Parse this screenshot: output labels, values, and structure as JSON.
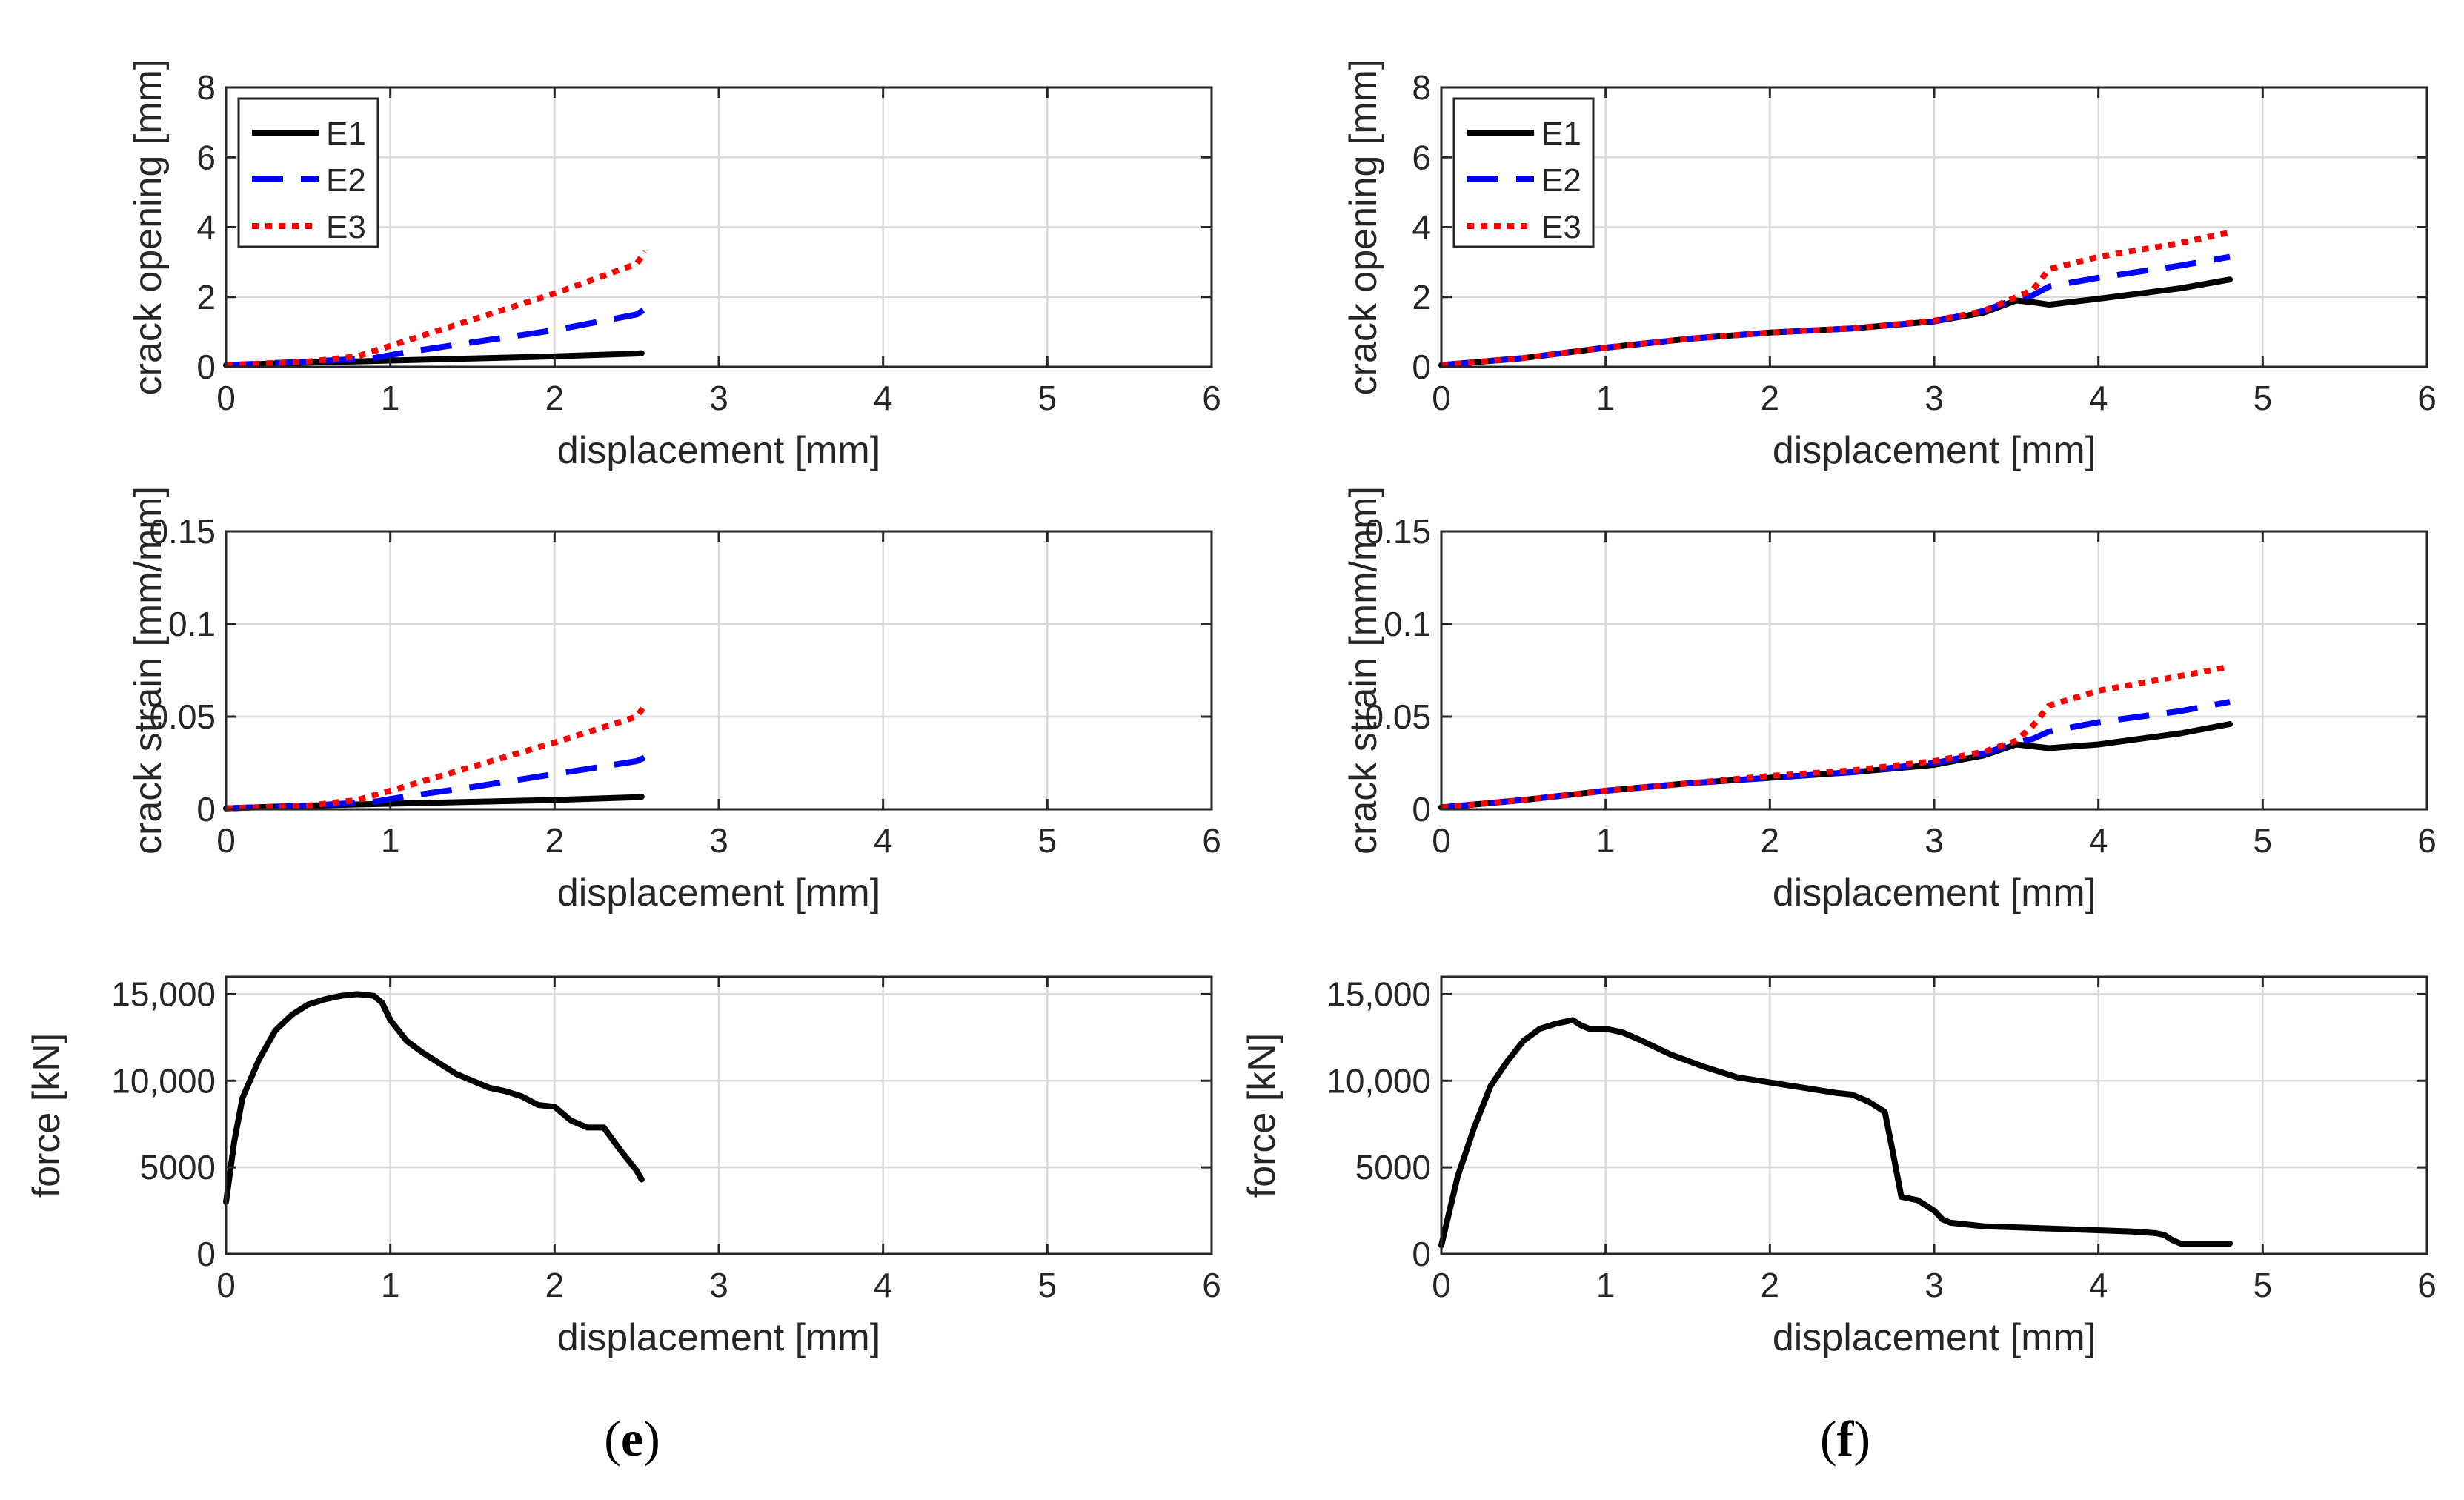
{
  "panels": [
    {
      "caption_letter": "e",
      "chart_data": [
        {
          "type": "line",
          "xlabel": "displacement [mm]",
          "ylabel": "crack opening [mm]",
          "xlim": [
            0,
            6
          ],
          "ylim": [
            0,
            8
          ],
          "xticks": [
            "0",
            "1",
            "2",
            "3",
            "4",
            "5",
            "6"
          ],
          "yticks": [
            "0",
            "2",
            "4",
            "6",
            "8"
          ],
          "grid": true,
          "legend": {
            "position": "top-left",
            "entries": [
              "E1",
              "E2",
              "E3"
            ]
          },
          "series": [
            {
              "name": "E1",
              "color": "#000000",
              "style": "solid",
              "x": [
                0,
                0.5,
                1.0,
                1.5,
                2.0,
                2.5,
                2.53
              ],
              "y": [
                0.05,
                0.12,
                0.18,
                0.24,
                0.3,
                0.38,
                0.39
              ]
            },
            {
              "name": "E2",
              "color": "#0000ff",
              "style": "dashed",
              "x": [
                0,
                0.5,
                0.9,
                1.1,
                1.5,
                2.0,
                2.5,
                2.55
              ],
              "y": [
                0.05,
                0.15,
                0.25,
                0.42,
                0.7,
                1.05,
                1.5,
                1.65
              ]
            },
            {
              "name": "E3",
              "color": "#ff0000",
              "style": "dotted",
              "x": [
                0,
                0.5,
                0.8,
                1.0,
                1.5,
                2.0,
                2.5,
                2.55
              ],
              "y": [
                0.05,
                0.15,
                0.3,
                0.6,
                1.35,
                2.1,
                2.95,
                3.3
              ]
            }
          ]
        },
        {
          "type": "line",
          "xlabel": "displacement [mm]",
          "ylabel": "crack strain [mm/mm]",
          "xlim": [
            0,
            6
          ],
          "ylim": [
            0,
            0.15
          ],
          "xticks": [
            "0",
            "1",
            "2",
            "3",
            "4",
            "5",
            "6"
          ],
          "yticks": [
            "0",
            "0.05",
            "0.1",
            "0.15"
          ],
          "grid": true,
          "series": [
            {
              "name": "E1",
              "color": "#000000",
              "style": "solid",
              "x": [
                0,
                0.5,
                1.0,
                1.5,
                2.0,
                2.5,
                2.53
              ],
              "y": [
                0.0005,
                0.002,
                0.003,
                0.004,
                0.005,
                0.0065,
                0.0068
              ]
            },
            {
              "name": "E2",
              "color": "#0000ff",
              "style": "dashed",
              "x": [
                0,
                0.5,
                0.9,
                1.1,
                1.5,
                2.0,
                2.5,
                2.55
              ],
              "y": [
                0.0005,
                0.002,
                0.004,
                0.007,
                0.012,
                0.019,
                0.026,
                0.028
              ]
            },
            {
              "name": "E3",
              "color": "#ff0000",
              "style": "dotted",
              "x": [
                0,
                0.5,
                0.8,
                1.0,
                1.5,
                2.0,
                2.5,
                2.55
              ],
              "y": [
                0.0005,
                0.002,
                0.005,
                0.01,
                0.023,
                0.036,
                0.05,
                0.056
              ]
            }
          ]
        },
        {
          "type": "line",
          "xlabel": "displacement [mm]",
          "ylabel": "force [kN]",
          "xlim": [
            0,
            6
          ],
          "ylim": [
            0,
            16000
          ],
          "xticks": [
            "0",
            "1",
            "2",
            "3",
            "4",
            "5",
            "6"
          ],
          "yticks": [
            "0",
            "5000",
            "10,000",
            "15,000"
          ],
          "ytick_values": [
            0,
            5000,
            10000,
            15000
          ],
          "grid": true,
          "series": [
            {
              "name": "force",
              "color": "#000000",
              "style": "solid",
              "x": [
                0,
                0.05,
                0.1,
                0.2,
                0.3,
                0.4,
                0.5,
                0.6,
                0.7,
                0.8,
                0.9,
                0.95,
                1.0,
                1.1,
                1.2,
                1.3,
                1.4,
                1.5,
                1.6,
                1.7,
                1.8,
                1.9,
                2.0,
                2.1,
                2.2,
                2.3,
                2.4,
                2.5,
                2.53
              ],
              "y": [
                3000,
                6500,
                9000,
                11200,
                12900,
                13800,
                14400,
                14700,
                14900,
                15000,
                14900,
                14500,
                13500,
                12300,
                11600,
                11000,
                10400,
                10000,
                9600,
                9400,
                9100,
                8600,
                8500,
                7700,
                7300,
                7300,
                6000,
                4800,
                4300
              ]
            }
          ]
        }
      ]
    },
    {
      "caption_letter": "f",
      "chart_data": [
        {
          "type": "line",
          "xlabel": "displacement [mm]",
          "ylabel": "crack opening [mm]",
          "xlim": [
            0,
            6
          ],
          "ylim": [
            0,
            8
          ],
          "xticks": [
            "0",
            "1",
            "2",
            "3",
            "4",
            "5",
            "6"
          ],
          "yticks": [
            "0",
            "2",
            "4",
            "6",
            "8"
          ],
          "grid": true,
          "legend": {
            "position": "top-left",
            "entries": [
              "E1",
              "E2",
              "E3"
            ]
          },
          "series": [
            {
              "name": "E1",
              "color": "#000000",
              "style": "solid",
              "x": [
                0,
                0.5,
                1.0,
                1.5,
                2.0,
                2.5,
                3.0,
                3.3,
                3.5,
                3.6,
                3.7,
                4.0,
                4.5,
                4.8
              ],
              "y": [
                0.05,
                0.25,
                0.55,
                0.8,
                0.98,
                1.1,
                1.3,
                1.55,
                1.9,
                1.85,
                1.78,
                1.95,
                2.25,
                2.5
              ]
            },
            {
              "name": "E2",
              "color": "#0000ff",
              "style": "dashed",
              "x": [
                0,
                0.5,
                1.0,
                1.5,
                2.0,
                2.5,
                3.0,
                3.3,
                3.5,
                3.6,
                3.7,
                4.0,
                4.5,
                4.8
              ],
              "y": [
                0.05,
                0.25,
                0.55,
                0.8,
                0.98,
                1.1,
                1.3,
                1.6,
                1.95,
                2.05,
                2.3,
                2.55,
                2.9,
                3.15
              ]
            },
            {
              "name": "E3",
              "color": "#ff0000",
              "style": "dotted",
              "x": [
                0,
                0.5,
                1.0,
                1.5,
                2.0,
                2.5,
                3.0,
                3.3,
                3.5,
                3.6,
                3.7,
                4.0,
                4.5,
                4.8
              ],
              "y": [
                0.05,
                0.25,
                0.55,
                0.8,
                0.98,
                1.1,
                1.32,
                1.6,
                2.0,
                2.2,
                2.8,
                3.15,
                3.55,
                3.85
              ]
            }
          ]
        },
        {
          "type": "line",
          "xlabel": "displacement [mm]",
          "ylabel": "crack strain [mm/mm]",
          "xlim": [
            0,
            6
          ],
          "ylim": [
            0,
            0.15
          ],
          "xticks": [
            "0",
            "1",
            "2",
            "3",
            "4",
            "5",
            "6"
          ],
          "yticks": [
            "0",
            "0.05",
            "0.1",
            "0.15"
          ],
          "grid": true,
          "series": [
            {
              "name": "E1",
              "color": "#000000",
              "style": "solid",
              "x": [
                0,
                0.5,
                1.0,
                1.5,
                2.0,
                2.5,
                3.0,
                3.3,
                3.5,
                3.6,
                3.7,
                4.0,
                4.5,
                4.8
              ],
              "y": [
                0.001,
                0.005,
                0.01,
                0.014,
                0.017,
                0.02,
                0.024,
                0.029,
                0.035,
                0.034,
                0.033,
                0.035,
                0.041,
                0.046
              ]
            },
            {
              "name": "E2",
              "color": "#0000ff",
              "style": "dashed",
              "x": [
                0,
                0.5,
                1.0,
                1.5,
                2.0,
                2.5,
                3.0,
                3.3,
                3.5,
                3.6,
                3.7,
                4.0,
                4.5,
                4.8
              ],
              "y": [
                0.001,
                0.005,
                0.01,
                0.014,
                0.017,
                0.02,
                0.025,
                0.03,
                0.036,
                0.038,
                0.042,
                0.047,
                0.053,
                0.058
              ]
            },
            {
              "name": "E3",
              "color": "#ff0000",
              "style": "dotted",
              "x": [
                0,
                0.5,
                1.0,
                1.5,
                2.0,
                2.5,
                3.0,
                3.3,
                3.5,
                3.6,
                3.7,
                4.0,
                4.5,
                4.8
              ],
              "y": [
                0.001,
                0.005,
                0.01,
                0.014,
                0.018,
                0.021,
                0.026,
                0.031,
                0.037,
                0.045,
                0.056,
                0.064,
                0.072,
                0.077
              ]
            }
          ]
        },
        {
          "type": "line",
          "xlabel": "displacement [mm]",
          "ylabel": "force [kN]",
          "xlim": [
            0,
            6
          ],
          "ylim": [
            0,
            16000
          ],
          "xticks": [
            "0",
            "1",
            "2",
            "3",
            "4",
            "5",
            "6"
          ],
          "yticks": [
            "0",
            "5000",
            "10,000",
            "15,000"
          ],
          "ytick_values": [
            0,
            5000,
            10000,
            15000
          ],
          "grid": true,
          "series": [
            {
              "name": "force",
              "color": "#000000",
              "style": "solid",
              "x": [
                0,
                0.05,
                0.1,
                0.2,
                0.3,
                0.4,
                0.5,
                0.6,
                0.7,
                0.8,
                0.85,
                0.9,
                1.0,
                1.1,
                1.2,
                1.4,
                1.6,
                1.8,
                2.0,
                2.2,
                2.4,
                2.5,
                2.6,
                2.7,
                2.75,
                2.8,
                2.85,
                2.9,
                3.0,
                3.05,
                3.1,
                3.3,
                3.6,
                3.9,
                4.2,
                4.35,
                4.4,
                4.45,
                4.5,
                4.8
              ],
              "y": [
                500,
                2500,
                4500,
                7300,
                9700,
                11100,
                12300,
                13000,
                13300,
                13500,
                13200,
                13000,
                13000,
                12800,
                12400,
                11500,
                10800,
                10200,
                9900,
                9600,
                9300,
                9200,
                8800,
                8200,
                5800,
                3300,
                3200,
                3100,
                2500,
                2000,
                1800,
                1600,
                1500,
                1400,
                1300,
                1200,
                1100,
                800,
                600,
                600
              ]
            }
          ]
        }
      ]
    }
  ]
}
